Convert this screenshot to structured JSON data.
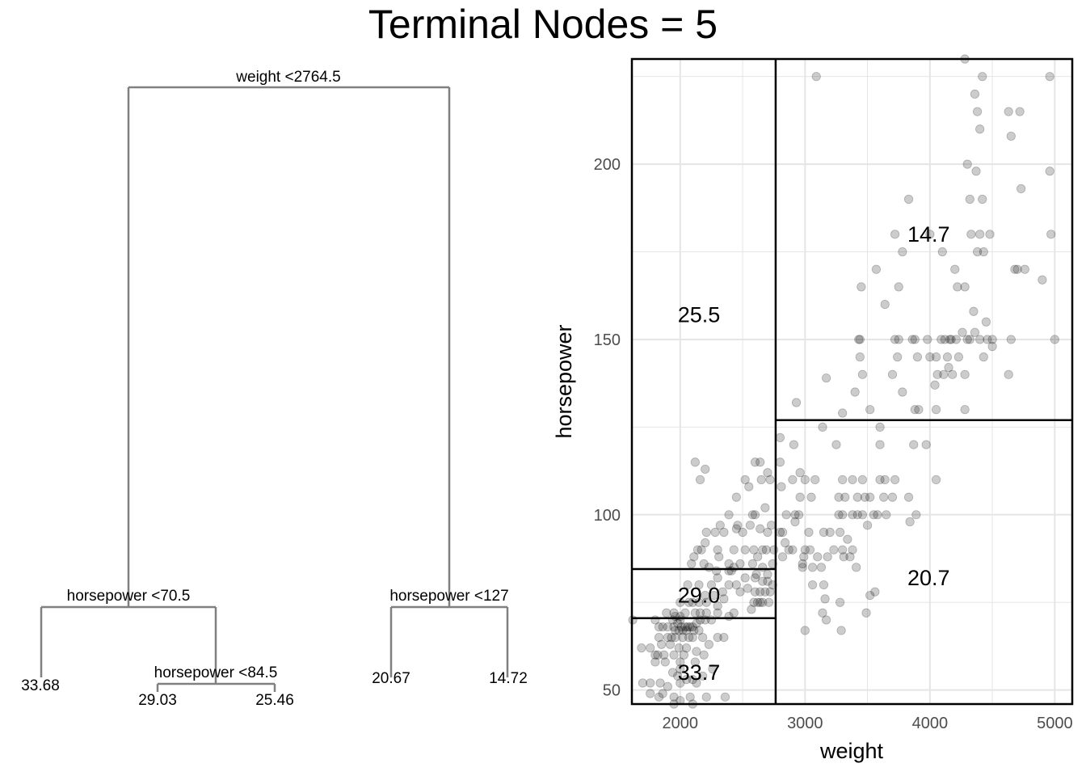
{
  "title": "Terminal Nodes = 5",
  "colors": {
    "tree_line": "#808080",
    "point_fill": "#000000",
    "grid": "#e5e5e5",
    "partition": "#000000",
    "text": "#000000",
    "tick_text": "#4d4d4d"
  },
  "chart_data": [
    {
      "type": "tree",
      "nodes": [
        {
          "id": "root",
          "split": "weight <2764.5",
          "left": "n1",
          "right": "n2"
        },
        {
          "id": "n1",
          "split": "horsepower <70.5",
          "left": "leaf1",
          "right": "n3"
        },
        {
          "id": "n3",
          "split": "horsepower <84.5",
          "left": "leaf2",
          "right": "leaf3"
        },
        {
          "id": "n2",
          "split": "horsepower <127",
          "left": "leaf4",
          "right": "leaf5"
        },
        {
          "id": "leaf1",
          "value": "33.68"
        },
        {
          "id": "leaf2",
          "value": "29.03"
        },
        {
          "id": "leaf3",
          "value": "25.46"
        },
        {
          "id": "leaf4",
          "value": "20.67"
        },
        {
          "id": "leaf5",
          "value": "14.72"
        }
      ]
    },
    {
      "type": "scatter",
      "xlabel": "weight",
      "ylabel": "horsepower",
      "xlim": [
        1613,
        5140
      ],
      "ylim": [
        46,
        230
      ],
      "xticks": [
        2000,
        3000,
        4000,
        5000
      ],
      "yticks": [
        50,
        100,
        150,
        200
      ],
      "grid": true,
      "partitions": {
        "vertical": [
          {
            "x": 2764.5,
            "y0": 46,
            "y1": 230
          }
        ],
        "horizontal": [
          {
            "y": 127,
            "x0": 2764.5,
            "x1": 5140
          },
          {
            "y": 84.5,
            "x0": 1613,
            "x1": 2764.5
          },
          {
            "y": 70.5,
            "x0": 1613,
            "x1": 2764.5
          }
        ]
      },
      "region_labels": [
        {
          "text": "25.5",
          "x": 2150,
          "y": 157
        },
        {
          "text": "14.7",
          "x": 3990,
          "y": 180
        },
        {
          "text": "29.0",
          "x": 2150,
          "y": 77
        },
        {
          "text": "20.7",
          "x": 3990,
          "y": 82
        },
        {
          "text": "33.7",
          "x": 2150,
          "y": 55
        }
      ],
      "points": [
        [
          3090,
          225
        ],
        [
          4280,
          230
        ],
        [
          4420,
          225
        ],
        [
          4960,
          225
        ],
        [
          4360,
          220
        ],
        [
          4380,
          215
        ],
        [
          4630,
          215
        ],
        [
          4720,
          215
        ],
        [
          4650,
          208
        ],
        [
          4400,
          210
        ],
        [
          4300,
          200
        ],
        [
          4370,
          198
        ],
        [
          4960,
          198
        ],
        [
          4730,
          193
        ],
        [
          3830,
          190
        ],
        [
          4320,
          190
        ],
        [
          4420,
          190
        ],
        [
          3720,
          180
        ],
        [
          4000,
          180
        ],
        [
          4330,
          180
        ],
        [
          4400,
          180
        ],
        [
          4480,
          180
        ],
        [
          4970,
          180
        ],
        [
          3780,
          175
        ],
        [
          4100,
          175
        ],
        [
          4380,
          175
        ],
        [
          4430,
          175
        ],
        [
          4680,
          170
        ],
        [
          4700,
          170
        ],
        [
          4760,
          170
        ],
        [
          3570,
          170
        ],
        [
          4200,
          170
        ],
        [
          3750,
          165
        ],
        [
          3450,
          165
        ],
        [
          4220,
          165
        ],
        [
          4280,
          165
        ],
        [
          4900,
          167
        ],
        [
          3640,
          160
        ],
        [
          4350,
          158
        ],
        [
          4450,
          155
        ],
        [
          4360,
          152
        ],
        [
          4260,
          152
        ],
        [
          4300,
          150
        ],
        [
          4400,
          150
        ],
        [
          4460,
          150
        ],
        [
          4500,
          150
        ],
        [
          4650,
          150
        ],
        [
          5000,
          150
        ],
        [
          3440,
          150
        ],
        [
          3430,
          150
        ],
        [
          3720,
          150
        ],
        [
          3750,
          150
        ],
        [
          3860,
          150
        ],
        [
          3880,
          150
        ],
        [
          4120,
          150
        ],
        [
          4160,
          150
        ],
        [
          4090,
          150
        ],
        [
          4170,
          150
        ],
        [
          4210,
          150
        ],
        [
          4320,
          150
        ],
        [
          4140,
          145
        ],
        [
          4000,
          145
        ],
        [
          4050,
          145
        ],
        [
          4230,
          145
        ],
        [
          4430,
          145
        ],
        [
          3440,
          145
        ],
        [
          3740,
          145
        ],
        [
          3900,
          145
        ],
        [
          3980,
          150
        ],
        [
          4150,
          142
        ],
        [
          4060,
          140
        ],
        [
          3460,
          140
        ],
        [
          3700,
          140
        ],
        [
          4110,
          140
        ],
        [
          4180,
          140
        ],
        [
          4280,
          140
        ],
        [
          4630,
          140
        ],
        [
          3170,
          139
        ],
        [
          4040,
          137
        ],
        [
          3780,
          135
        ],
        [
          3880,
          130
        ],
        [
          3910,
          130
        ],
        [
          3520,
          130
        ],
        [
          4050,
          130
        ],
        [
          4280,
          130
        ],
        [
          3400,
          135
        ],
        [
          3300,
          129
        ],
        [
          3600,
          125
        ],
        [
          2930,
          132
        ],
        [
          3140,
          125
        ],
        [
          4500,
          148
        ],
        [
          2800,
          122
        ],
        [
          2910,
          120
        ],
        [
          3250,
          120
        ],
        [
          3600,
          120
        ],
        [
          3870,
          120
        ],
        [
          3970,
          120
        ],
        [
          2800,
          115
        ],
        [
          2960,
          112
        ],
        [
          3000,
          110
        ],
        [
          3080,
          110
        ],
        [
          3300,
          110
        ],
        [
          3380,
          110
        ],
        [
          3460,
          110
        ],
        [
          3600,
          110
        ],
        [
          3640,
          110
        ],
        [
          3720,
          110
        ],
        [
          3700,
          105
        ],
        [
          3830,
          105
        ],
        [
          4050,
          110
        ],
        [
          2810,
          108
        ],
        [
          2900,
          110
        ],
        [
          2960,
          105
        ],
        [
          3050,
          105
        ],
        [
          3270,
          105
        ],
        [
          3320,
          105
        ],
        [
          3420,
          105
        ],
        [
          3480,
          105
        ],
        [
          3520,
          105
        ],
        [
          3630,
          105
        ],
        [
          3380,
          100
        ],
        [
          3420,
          100
        ],
        [
          3460,
          100
        ],
        [
          3550,
          100
        ],
        [
          3580,
          100
        ],
        [
          3650,
          100
        ],
        [
          3890,
          100
        ],
        [
          3270,
          100
        ],
        [
          3300,
          100
        ],
        [
          2850,
          100
        ],
        [
          2920,
          100
        ],
        [
          2950,
          100
        ],
        [
          3030,
          95
        ],
        [
          3150,
          95
        ],
        [
          3200,
          95
        ],
        [
          3280,
          95
        ],
        [
          3500,
          97
        ],
        [
          3840,
          98
        ],
        [
          3340,
          93
        ],
        [
          3230,
          90
        ],
        [
          3040,
          90
        ],
        [
          3000,
          90
        ],
        [
          2900,
          90
        ],
        [
          2990,
          88
        ],
        [
          3100,
          88
        ],
        [
          3180,
          88
        ],
        [
          3310,
          88
        ],
        [
          2980,
          86
        ],
        [
          2980,
          85
        ],
        [
          3060,
          85
        ],
        [
          3300,
          90
        ],
        [
          3130,
          85
        ],
        [
          3380,
          90
        ],
        [
          3360,
          88
        ],
        [
          3060,
          80
        ],
        [
          3150,
          80
        ],
        [
          3280,
          75
        ],
        [
          3140,
          72
        ],
        [
          3170,
          70
        ],
        [
          3290,
          67
        ],
        [
          3000,
          67
        ],
        [
          3490,
          72
        ],
        [
          3520,
          77
        ],
        [
          3560,
          78
        ],
        [
          3410,
          85
        ],
        [
          3160,
          76
        ],
        [
          2820,
          88
        ],
        [
          2870,
          90
        ],
        [
          2820,
          95
        ],
        [
          2920,
          98
        ],
        [
          2840,
          92
        ],
        [
          2800,
          95
        ],
        [
          2120,
          115
        ],
        [
          2160,
          110
        ],
        [
          2200,
          113
        ],
        [
          2520,
          110
        ],
        [
          2600,
          115
        ],
        [
          2640,
          115
        ],
        [
          2700,
          112
        ],
        [
          2720,
          110
        ],
        [
          2550,
          108
        ],
        [
          2650,
          110
        ],
        [
          2450,
          105
        ],
        [
          2680,
          102
        ],
        [
          2580,
          100
        ],
        [
          2600,
          100
        ],
        [
          2460,
          97
        ],
        [
          2320,
          97
        ],
        [
          2450,
          96
        ],
        [
          2500,
          95
        ],
        [
          2560,
          97
        ],
        [
          2640,
          96
        ],
        [
          2700,
          95
        ],
        [
          2730,
          97
        ],
        [
          2350,
          95
        ],
        [
          2390,
          100
        ],
        [
          2280,
          95
        ],
        [
          2210,
          95
        ],
        [
          2200,
          92
        ],
        [
          2430,
          90
        ],
        [
          2520,
          90
        ],
        [
          2590,
          90
        ],
        [
          2620,
          88
        ],
        [
          2660,
          90
        ],
        [
          2690,
          90
        ],
        [
          2750,
          90
        ],
        [
          2300,
          90
        ],
        [
          2170,
          90
        ],
        [
          2140,
          90
        ],
        [
          2110,
          88
        ],
        [
          2090,
          86
        ],
        [
          2310,
          88
        ],
        [
          2390,
          86
        ],
        [
          2410,
          84
        ],
        [
          2480,
          86
        ],
        [
          2580,
          86
        ],
        [
          2610,
          83
        ],
        [
          2660,
          85
        ],
        [
          2700,
          83
        ],
        [
          2740,
          86
        ],
        [
          2190,
          86
        ],
        [
          2230,
          85
        ],
        [
          2290,
          84
        ],
        [
          2300,
          82
        ],
        [
          2390,
          84
        ],
        [
          2430,
          85
        ],
        [
          2520,
          82
        ],
        [
          2600,
          82
        ],
        [
          2660,
          81
        ],
        [
          2700,
          81
        ],
        [
          2060,
          80
        ],
        [
          2150,
          80
        ],
        [
          2250,
          80
        ],
        [
          2390,
          80
        ],
        [
          2450,
          80
        ],
        [
          2480,
          78
        ],
        [
          2540,
          79
        ],
        [
          2600,
          78
        ],
        [
          2640,
          78
        ],
        [
          2680,
          78
        ],
        [
          2720,
          78
        ],
        [
          2740,
          80
        ],
        [
          2200,
          77
        ],
        [
          2270,
          77
        ],
        [
          2340,
          78
        ],
        [
          2150,
          75
        ],
        [
          2000,
          75
        ],
        [
          2070,
          75
        ],
        [
          2100,
          75
        ],
        [
          2210,
          75
        ],
        [
          2300,
          74
        ],
        [
          2350,
          76
        ],
        [
          2590,
          75
        ],
        [
          2620,
          75
        ],
        [
          2640,
          75
        ],
        [
          2660,
          75
        ],
        [
          2710,
          75
        ],
        [
          2570,
          73
        ],
        [
          2430,
          72
        ],
        [
          2390,
          71
        ],
        [
          2300,
          72
        ],
        [
          2210,
          72
        ],
        [
          2160,
          72
        ],
        [
          2120,
          72
        ],
        [
          2040,
          72
        ],
        [
          2000,
          71
        ],
        [
          1960,
          71
        ],
        [
          1890,
          72
        ],
        [
          1950,
          72
        ],
        [
          1800,
          70
        ],
        [
          1830,
          68
        ],
        [
          1860,
          68
        ],
        [
          1900,
          68
        ],
        [
          1940,
          70
        ],
        [
          1950,
          68
        ],
        [
          1980,
          69
        ],
        [
          2000,
          70
        ],
        [
          2010,
          68
        ],
        [
          2040,
          68
        ],
        [
          2060,
          68
        ],
        [
          2080,
          68
        ],
        [
          2100,
          68
        ],
        [
          2130,
          69
        ],
        [
          2160,
          70
        ],
        [
          2200,
          70
        ],
        [
          2250,
          70
        ],
        [
          1960,
          67
        ],
        [
          1990,
          67
        ],
        [
          2020,
          67
        ],
        [
          2050,
          67
        ],
        [
          2110,
          67
        ],
        [
          2150,
          67
        ],
        [
          1900,
          65
        ],
        [
          1930,
          65
        ],
        [
          1960,
          65
        ],
        [
          2020,
          65
        ],
        [
          2070,
          65
        ],
        [
          2100,
          65
        ],
        [
          2180,
          65
        ],
        [
          2300,
          65
        ],
        [
          1850,
          63
        ],
        [
          1920,
          63
        ],
        [
          1990,
          62
        ],
        [
          2050,
          62
        ],
        [
          2130,
          61
        ],
        [
          2230,
          63
        ],
        [
          2350,
          65
        ],
        [
          1800,
          60
        ],
        [
          1820,
          60
        ],
        [
          1870,
          60
        ],
        [
          1950,
          60
        ],
        [
          2000,
          58
        ],
        [
          2030,
          60
        ],
        [
          2120,
          58
        ],
        [
          2190,
          60
        ],
        [
          2000,
          56
        ],
        [
          1940,
          55
        ],
        [
          1980,
          54
        ],
        [
          2050,
          53
        ],
        [
          2100,
          53
        ],
        [
          2180,
          54
        ],
        [
          2260,
          56
        ],
        [
          1700,
          52
        ],
        [
          1760,
          52
        ],
        [
          1840,
          52
        ],
        [
          1900,
          51
        ],
        [
          2000,
          52
        ],
        [
          2130,
          52
        ],
        [
          1800,
          58
        ],
        [
          1760,
          62
        ],
        [
          1830,
          65
        ],
        [
          1880,
          58
        ],
        [
          1620,
          70
        ],
        [
          1690,
          62
        ],
        [
          1760,
          49
        ],
        [
          1860,
          49
        ],
        [
          1950,
          46
        ],
        [
          2080,
          48
        ],
        [
          2210,
          48
        ],
        [
          2360,
          48
        ],
        [
          1950,
          48
        ],
        [
          2000,
          47
        ],
        [
          1830,
          48
        ],
        [
          2100,
          46
        ]
      ]
    }
  ]
}
